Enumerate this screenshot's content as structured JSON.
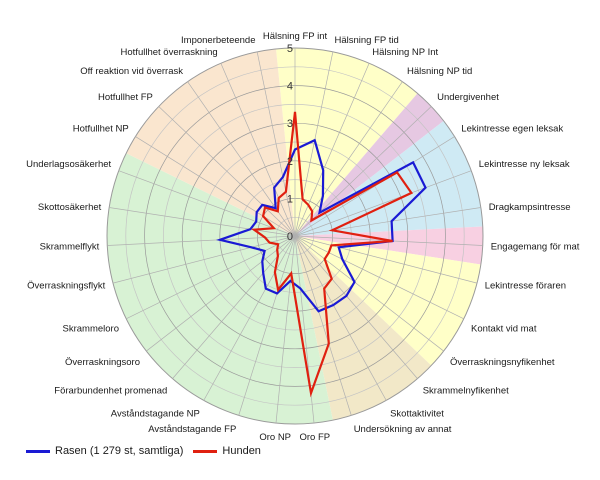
{
  "chart_data": {
    "type": "radar",
    "title": "",
    "rlim": [
      0,
      5
    ],
    "r_ticks": [
      "0",
      "1",
      "2",
      "3",
      "4",
      "5"
    ],
    "categories": [
      "Hälsning FP int",
      "Hälsning FP tid",
      "Hälsning NP Int",
      "Hälsning NP tid",
      "Undergivenhet",
      "Lekintresse egen leksak",
      "Lekintresse ny leksak",
      "Dragkampsintresse",
      "Engagemang för mat",
      "Lekintresse föraren",
      "Kontakt vid mat",
      "Överraskningsnyfikenhet",
      "Skrammelnyfikenhet",
      "Skottaktivitet",
      "Undersökning av annat",
      "Oro FP",
      "Oro NP",
      "Avståndstagande FP",
      "Avståndstagande NP",
      "Förarbundenhet promenad",
      "Överraskningsoro",
      "Skrammeloro",
      "Överraskningsflykt",
      "Skrammelflykt",
      "Skottosäkerhet",
      "Underlagsosäkerhet",
      "Hotfullhet NP",
      "Hotfullhet FP",
      "Off reaktion vid överrask",
      "Hotfullhet överraskning",
      "Imponerbeteende"
    ],
    "series": [
      {
        "name": "Rasen (1 279 st, samtliga)",
        "color": "#1a1ad4",
        "values": [
          2.3,
          2.6,
          1.9,
          1.3,
          0.9,
          3.7,
          3.7,
          2.6,
          2.6,
          1.2,
          1.4,
          2.0,
          2.1,
          2.1,
          2.1,
          1.4,
          1.2,
          1.6,
          1.6,
          1.3,
          1.1,
          0.9,
          1.2,
          2.0,
          1.2,
          1.1,
          1.2,
          1.2,
          0.9,
          1.4,
          1.6
        ]
      },
      {
        "name": "Hunden",
        "color": "#e02010",
        "values": [
          3.3,
          1.0,
          0.9,
          0.8,
          0.6,
          3.2,
          3.3,
          1.0,
          2.6,
          1.0,
          1.0,
          1.0,
          1.5,
          1.6,
          3.0,
          4.2,
          1.0,
          1.5,
          1.1,
          0.7,
          0.6,
          0.5,
          0.7,
          0.8,
          1.1,
          0.6,
          1.0,
          1.1,
          0.8,
          1.1,
          1.2
        ]
      }
    ],
    "background_sectors": [
      {
        "from": 0,
        "to": 4,
        "color": "#ffffc8"
      },
      {
        "from": 4,
        "to": 5,
        "color": "#e6c8e2"
      },
      {
        "from": 5,
        "to": 8,
        "color": "#cfeaf4"
      },
      {
        "from": 8,
        "to": 9,
        "color": "#f8d0e2"
      },
      {
        "from": 9,
        "to": 12,
        "color": "#ffffc8"
      },
      {
        "from": 12,
        "to": 15,
        "color": "#f2e8c8"
      },
      {
        "from": 15,
        "to": 26,
        "color": "#d8f2d4"
      },
      {
        "from": 26,
        "to": 31,
        "color": "#fae6cf"
      }
    ],
    "grid": true,
    "legend_position": "bottom-left"
  }
}
